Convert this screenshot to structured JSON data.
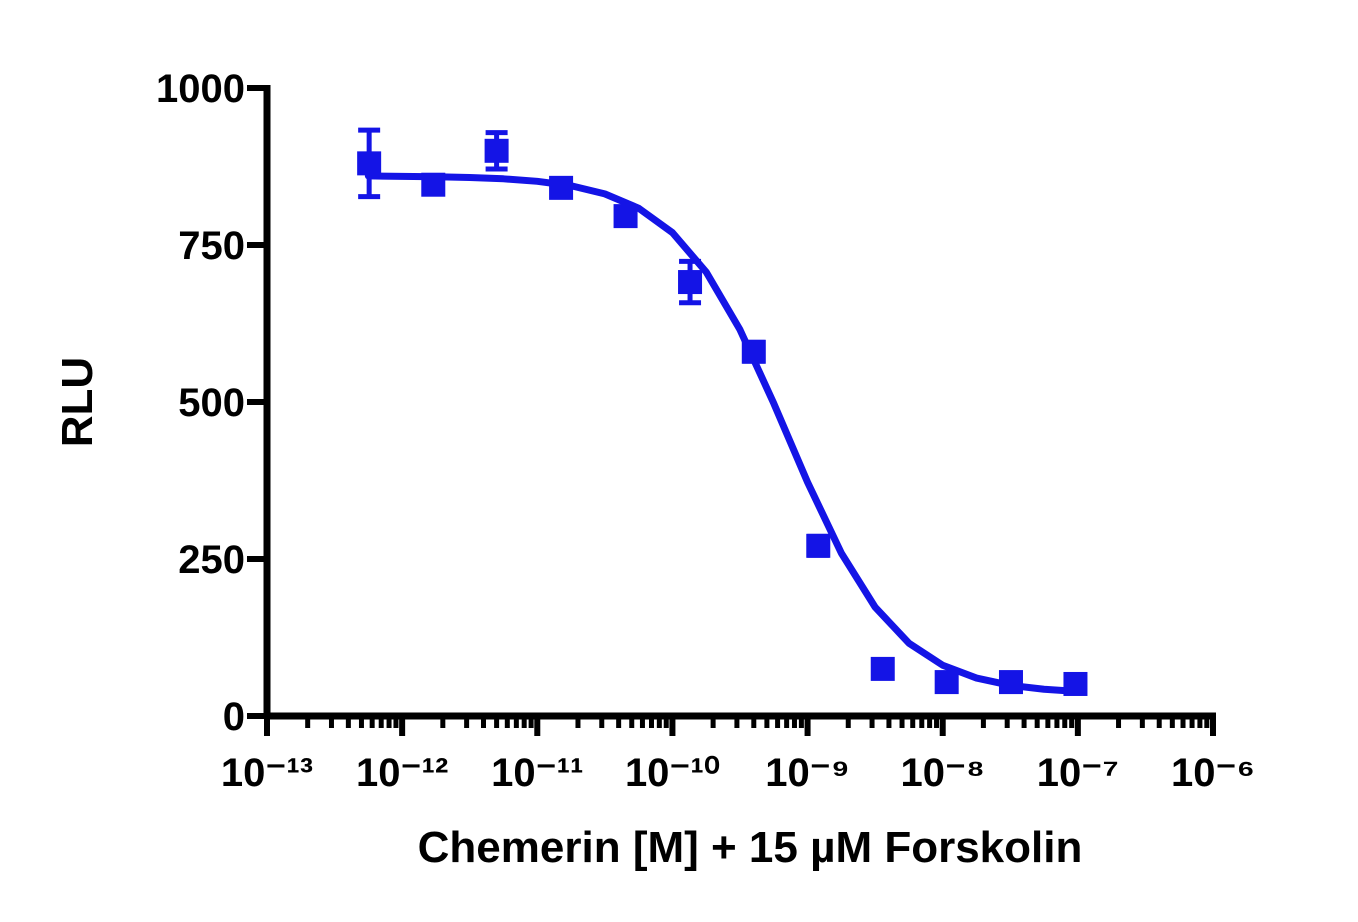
{
  "chart_data": {
    "type": "scatter",
    "x_label": "Chemerin [M] + 15  µM Forskolin",
    "y_label": "RLU",
    "xscale": "log",
    "minor_ticks": true,
    "xlim": [
      1e-13,
      1e-06
    ],
    "xticks": [
      {
        "value": 1e-13,
        "label": "10⁻¹³"
      },
      {
        "value": 1e-12,
        "label": "10⁻¹²"
      },
      {
        "value": 1e-11,
        "label": "10⁻¹¹"
      },
      {
        "value": 1e-10,
        "label": "10⁻¹⁰"
      },
      {
        "value": 1e-09,
        "label": "10⁻⁹"
      },
      {
        "value": 1e-08,
        "label": "10⁻⁸"
      },
      {
        "value": 1e-07,
        "label": "10⁻⁷"
      },
      {
        "value": 1e-06,
        "label": "10⁻⁶"
      }
    ],
    "ylim": [
      0,
      1000
    ],
    "yticks": [
      0,
      250,
      500,
      750,
      1000
    ],
    "series": [
      {
        "type": "scatter",
        "color": "#1414e6",
        "x": [
          5.7e-13,
          1.7e-12,
          5e-12,
          1.5e-11,
          4.5e-11,
          1.35e-10,
          4e-10,
          1.2e-09,
          3.6e-09,
          1.07e-08,
          3.2e-08,
          9.6e-08
        ],
        "values": [
          880,
          846,
          900,
          841,
          796,
          691,
          580,
          271,
          75,
          54,
          54,
          51
        ],
        "errors": [
          53,
          null,
          29,
          null,
          null,
          33,
          15,
          15,
          null,
          null,
          null,
          null
        ]
      },
      {
        "type": "line",
        "color": "#1414e6",
        "x": [
          5.62e-13,
          1e-12,
          1.78e-12,
          3.16e-12,
          5.62e-12,
          1e-11,
          1.78e-11,
          3.16e-11,
          5.62e-11,
          1e-10,
          1.78e-10,
          3.16e-10,
          5.62e-10,
          1e-09,
          1.78e-09,
          3.16e-09,
          5.62e-09,
          1e-08,
          1.78e-08,
          3.16e-08,
          5.62e-08,
          1e-07
        ],
        "values": [
          860,
          859.3,
          858.6,
          857.5,
          855.4,
          851.4,
          844.3,
          831.4,
          808.6,
          769.7,
          706.8,
          615.2,
          497.9,
          372.2,
          259.2,
          173.4,
          116.0,
          80.8,
          60.4,
          48.9,
          42.6,
          39.1
        ]
      }
    ]
  }
}
